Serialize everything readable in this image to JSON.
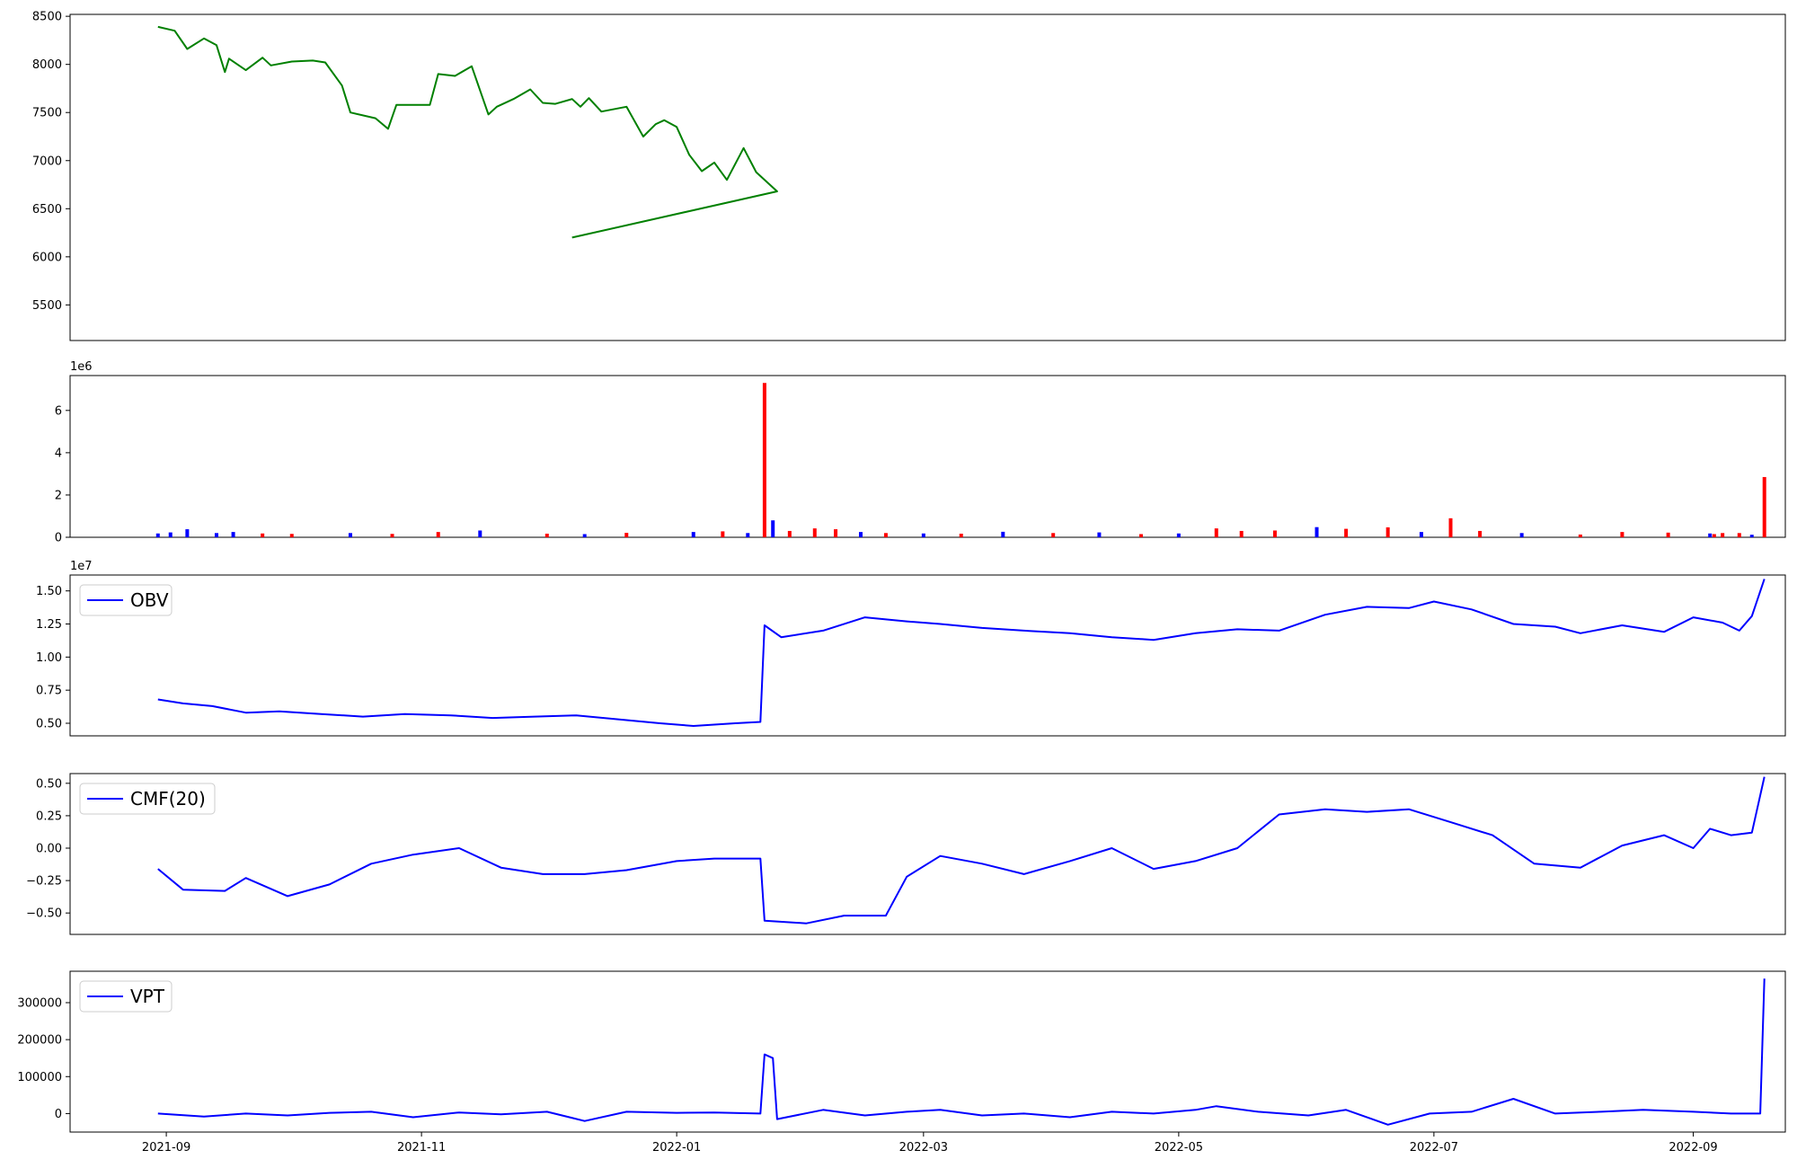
{
  "chart_data": {
    "type": "line",
    "x_axis": {
      "ticks": [
        "2021-09",
        "2021-11",
        "2022-01",
        "2022-03",
        "2022-05",
        "2022-07",
        "2022-09"
      ],
      "range": [
        "2021-08-09",
        "2022-09-23"
      ]
    },
    "panels": [
      {
        "id": "price",
        "type": "line",
        "color": "#008000",
        "ylim": [
          5130,
          8520
        ],
        "yticks": [
          5500,
          6000,
          6500,
          7000,
          7500,
          8000,
          8500
        ],
        "ytick_labels": [
          "5500",
          "6000",
          "6500",
          "7000",
          "7500",
          "8000",
          "8500"
        ],
        "legend": "",
        "points": [
          [
            "2021-08-30",
            8390
          ],
          [
            "2021-09-03",
            8350
          ],
          [
            "2021-09-06",
            8160
          ],
          [
            "2021-09-10",
            8270
          ],
          [
            "2021-09-13",
            8200
          ],
          [
            "2021-09-15",
            7920
          ],
          [
            "2021-09-16",
            8060
          ],
          [
            "2021-09-20",
            7940
          ],
          [
            "2021-09-24",
            8070
          ],
          [
            "2021-09-26",
            7990
          ],
          [
            "2021-10-01",
            8030
          ],
          [
            "2021-10-06",
            8040
          ],
          [
            "2021-10-09",
            8020
          ],
          [
            "2021-10-13",
            7780
          ],
          [
            "2021-10-15",
            7500
          ],
          [
            "2021-10-21",
            7440
          ],
          [
            "2021-10-24",
            7330
          ],
          [
            "2021-10-26",
            7580
          ],
          [
            "2021-11-03",
            7580
          ],
          [
            "2021-11-05",
            7900
          ],
          [
            "2021-11-09",
            7880
          ],
          [
            "2021-11-13",
            7980
          ],
          [
            "2021-11-17",
            7480
          ],
          [
            "2021-11-19",
            7560
          ],
          [
            "2021-11-23",
            7640
          ],
          [
            "2021-11-27",
            7740
          ],
          [
            "2021-11-30",
            7600
          ],
          [
            "2021-12-03",
            7590
          ],
          [
            "2021-12-07",
            7640
          ],
          [
            "2021-12-09",
            7560
          ],
          [
            "2021-12-11",
            7650
          ],
          [
            "2021-12-14",
            7510
          ],
          [
            "2021-12-20",
            7560
          ],
          [
            "2021-12-24",
            7250
          ],
          [
            "2021-12-27",
            7380
          ],
          [
            "2021-12-29",
            7420
          ],
          [
            "2022-01-01",
            7350
          ],
          [
            "2022-01-04",
            7060
          ],
          [
            "2022-01-07",
            6890
          ],
          [
            "2022-01-10",
            6980
          ],
          [
            "2022-01-13",
            6800
          ],
          [
            "2022-01-17",
            7130
          ],
          [
            "2022-01-20",
            6880
          ],
          [
            "2022-01-25",
            6680
          ],
          [
            "2021-12-07",
            6200
          ]
        ]
      },
      {
        "id": "volume",
        "type": "bar",
        "ylim": [
          0,
          7650000
        ],
        "yticks": [
          0,
          2000000,
          4000000,
          6000000
        ],
        "ytick_labels": [
          "0",
          "2",
          "4",
          "6"
        ],
        "scale_label": "1e6",
        "legend": "",
        "colors": {
          "up": "#ff0000",
          "down": "#0000ff",
          "flat": "#000000"
        },
        "bars": [
          [
            "2021-08-30",
            180000,
            "down"
          ],
          [
            "2021-09-02",
            230000,
            "down"
          ],
          [
            "2021-09-06",
            380000,
            "down"
          ],
          [
            "2021-09-13",
            200000,
            "down"
          ],
          [
            "2021-09-17",
            250000,
            "down"
          ],
          [
            "2021-09-24",
            180000,
            "red"
          ],
          [
            "2021-10-01",
            160000,
            "red"
          ],
          [
            "2021-10-15",
            200000,
            "down"
          ],
          [
            "2021-10-25",
            160000,
            "red"
          ],
          [
            "2021-11-05",
            250000,
            "red"
          ],
          [
            "2021-11-15",
            320000,
            "down"
          ],
          [
            "2021-12-01",
            170000,
            "red"
          ],
          [
            "2021-12-10",
            150000,
            "down"
          ],
          [
            "2021-12-20",
            210000,
            "red"
          ],
          [
            "2022-01-05",
            250000,
            "down"
          ],
          [
            "2022-01-12",
            280000,
            "red"
          ],
          [
            "2022-01-18",
            200000,
            "down"
          ],
          [
            "2022-01-22",
            7300000,
            "up"
          ],
          [
            "2022-01-24",
            800000,
            "down"
          ],
          [
            "2022-01-28",
            300000,
            "red"
          ],
          [
            "2022-02-03",
            420000,
            "up"
          ],
          [
            "2022-02-08",
            380000,
            "up"
          ],
          [
            "2022-02-14",
            250000,
            "down"
          ],
          [
            "2022-02-20",
            200000,
            "red"
          ],
          [
            "2022-03-01",
            180000,
            "down"
          ],
          [
            "2022-03-10",
            170000,
            "red"
          ],
          [
            "2022-03-20",
            260000,
            "down"
          ],
          [
            "2022-04-01",
            200000,
            "red"
          ],
          [
            "2022-04-12",
            230000,
            "down"
          ],
          [
            "2022-04-22",
            150000,
            "red"
          ],
          [
            "2022-05-01",
            180000,
            "down"
          ],
          [
            "2022-05-10",
            420000,
            "up"
          ],
          [
            "2022-05-16",
            300000,
            "up"
          ],
          [
            "2022-05-24",
            320000,
            "up"
          ],
          [
            "2022-06-03",
            480000,
            "down"
          ],
          [
            "2022-06-10",
            400000,
            "up"
          ],
          [
            "2022-06-20",
            470000,
            "up"
          ],
          [
            "2022-06-28",
            250000,
            "down"
          ],
          [
            "2022-07-05",
            900000,
            "up"
          ],
          [
            "2022-07-12",
            300000,
            "up"
          ],
          [
            "2022-07-22",
            200000,
            "down"
          ],
          [
            "2022-08-05",
            130000,
            "red"
          ],
          [
            "2022-08-15",
            250000,
            "up"
          ],
          [
            "2022-08-26",
            220000,
            "up"
          ],
          [
            "2022-09-05",
            180000,
            "down"
          ],
          [
            "2022-09-06",
            150000,
            "up"
          ],
          [
            "2022-09-08",
            200000,
            "up"
          ],
          [
            "2022-09-12",
            200000,
            "up"
          ],
          [
            "2022-09-15",
            120000,
            "down"
          ],
          [
            "2022-09-18",
            2850000,
            "up"
          ]
        ]
      },
      {
        "id": "obv",
        "type": "line",
        "color": "#0000ff",
        "ylim": [
          4050000,
          16200000
        ],
        "yticks": [
          5000000,
          7500000,
          10000000,
          12500000,
          15000000
        ],
        "ytick_labels": [
          "0.50",
          "0.75",
          "1.00",
          "1.25",
          "1.50"
        ],
        "scale_label": "1e7",
        "legend": "OBV",
        "points": [
          [
            "2021-08-30",
            6800000
          ],
          [
            "2021-09-05",
            6500000
          ],
          [
            "2021-09-12",
            6300000
          ],
          [
            "2021-09-20",
            5800000
          ],
          [
            "2021-09-28",
            5900000
          ],
          [
            "2021-10-08",
            5700000
          ],
          [
            "2021-10-18",
            5500000
          ],
          [
            "2021-10-28",
            5700000
          ],
          [
            "2021-11-08",
            5600000
          ],
          [
            "2021-11-18",
            5400000
          ],
          [
            "2021-11-28",
            5500000
          ],
          [
            "2021-12-08",
            5600000
          ],
          [
            "2021-12-18",
            5300000
          ],
          [
            "2021-12-28",
            5000000
          ],
          [
            "2022-01-05",
            4800000
          ],
          [
            "2022-01-15",
            5000000
          ],
          [
            "2022-01-21",
            5100000
          ],
          [
            "2022-01-22",
            12400000
          ],
          [
            "2022-01-26",
            11500000
          ],
          [
            "2022-02-05",
            12000000
          ],
          [
            "2022-02-15",
            13000000
          ],
          [
            "2022-02-25",
            12700000
          ],
          [
            "2022-03-05",
            12500000
          ],
          [
            "2022-03-15",
            12200000
          ],
          [
            "2022-03-25",
            12000000
          ],
          [
            "2022-04-05",
            11800000
          ],
          [
            "2022-04-15",
            11500000
          ],
          [
            "2022-04-25",
            11300000
          ],
          [
            "2022-05-05",
            11800000
          ],
          [
            "2022-05-15",
            12100000
          ],
          [
            "2022-05-25",
            12000000
          ],
          [
            "2022-06-05",
            13200000
          ],
          [
            "2022-06-15",
            13800000
          ],
          [
            "2022-06-25",
            13700000
          ],
          [
            "2022-07-01",
            14200000
          ],
          [
            "2022-07-10",
            13600000
          ],
          [
            "2022-07-20",
            12500000
          ],
          [
            "2022-07-30",
            12300000
          ],
          [
            "2022-08-05",
            11800000
          ],
          [
            "2022-08-15",
            12400000
          ],
          [
            "2022-08-25",
            11900000
          ],
          [
            "2022-09-01",
            13000000
          ],
          [
            "2022-09-08",
            12600000
          ],
          [
            "2022-09-12",
            12000000
          ],
          [
            "2022-09-15",
            13100000
          ],
          [
            "2022-09-18",
            15900000
          ]
        ]
      },
      {
        "id": "cmf",
        "type": "line",
        "color": "#0000ff",
        "ylim": [
          -0.665,
          0.575
        ],
        "yticks": [
          -0.5,
          -0.25,
          0.0,
          0.25,
          0.5
        ],
        "ytick_labels": [
          "−0.50",
          "−0.25",
          "0.00",
          "0.25",
          "0.50"
        ],
        "legend": "CMF(20)",
        "points": [
          [
            "2021-08-30",
            -0.16
          ],
          [
            "2021-09-05",
            -0.32
          ],
          [
            "2021-09-15",
            -0.33
          ],
          [
            "2021-09-20",
            -0.23
          ],
          [
            "2021-09-30",
            -0.37
          ],
          [
            "2021-10-10",
            -0.28
          ],
          [
            "2021-10-20",
            -0.12
          ],
          [
            "2021-10-30",
            -0.05
          ],
          [
            "2021-11-10",
            0.0
          ],
          [
            "2021-11-20",
            -0.15
          ],
          [
            "2021-11-30",
            -0.2
          ],
          [
            "2021-12-10",
            -0.2
          ],
          [
            "2021-12-20",
            -0.17
          ],
          [
            "2022-01-01",
            -0.1
          ],
          [
            "2022-01-10",
            -0.08
          ],
          [
            "2022-01-21",
            -0.08
          ],
          [
            "2022-01-22",
            -0.56
          ],
          [
            "2022-02-01",
            -0.58
          ],
          [
            "2022-02-10",
            -0.52
          ],
          [
            "2022-02-20",
            -0.52
          ],
          [
            "2022-02-25",
            -0.22
          ],
          [
            "2022-03-05",
            -0.06
          ],
          [
            "2022-03-15",
            -0.12
          ],
          [
            "2022-03-25",
            -0.2
          ],
          [
            "2022-04-05",
            -0.1
          ],
          [
            "2022-04-15",
            0.0
          ],
          [
            "2022-04-25",
            -0.16
          ],
          [
            "2022-05-05",
            -0.1
          ],
          [
            "2022-05-15",
            0.0
          ],
          [
            "2022-05-25",
            0.26
          ],
          [
            "2022-06-05",
            0.3
          ],
          [
            "2022-06-15",
            0.28
          ],
          [
            "2022-06-25",
            0.3
          ],
          [
            "2022-07-05",
            0.2
          ],
          [
            "2022-07-15",
            0.1
          ],
          [
            "2022-07-25",
            -0.12
          ],
          [
            "2022-08-05",
            -0.15
          ],
          [
            "2022-08-15",
            0.02
          ],
          [
            "2022-08-25",
            0.1
          ],
          [
            "2022-09-01",
            0.0
          ],
          [
            "2022-09-05",
            0.15
          ],
          [
            "2022-09-10",
            0.1
          ],
          [
            "2022-09-15",
            0.12
          ],
          [
            "2022-09-18",
            0.55
          ]
        ]
      },
      {
        "id": "vpt",
        "type": "line",
        "color": "#0000ff",
        "ylim": [
          -50000,
          385000
        ],
        "yticks": [
          0,
          100000,
          200000,
          300000
        ],
        "ytick_labels": [
          "0",
          "100000",
          "200000",
          "300000"
        ],
        "legend": "VPT",
        "points": [
          [
            "2021-08-30",
            0
          ],
          [
            "2021-09-10",
            -8000
          ],
          [
            "2021-09-20",
            0
          ],
          [
            "2021-09-30",
            -5000
          ],
          [
            "2021-10-10",
            2000
          ],
          [
            "2021-10-20",
            5000
          ],
          [
            "2021-10-30",
            -10000
          ],
          [
            "2021-11-10",
            3000
          ],
          [
            "2021-11-20",
            -2000
          ],
          [
            "2021-12-01",
            5000
          ],
          [
            "2021-12-10",
            -20000
          ],
          [
            "2021-12-20",
            5000
          ],
          [
            "2022-01-01",
            2000
          ],
          [
            "2022-01-10",
            3000
          ],
          [
            "2022-01-21",
            0
          ],
          [
            "2022-01-22",
            160000
          ],
          [
            "2022-01-24",
            150000
          ],
          [
            "2022-01-25",
            -15000
          ],
          [
            "2022-02-05",
            10000
          ],
          [
            "2022-02-15",
            -5000
          ],
          [
            "2022-02-25",
            5000
          ],
          [
            "2022-03-05",
            10000
          ],
          [
            "2022-03-15",
            -5000
          ],
          [
            "2022-03-25",
            0
          ],
          [
            "2022-04-05",
            -10000
          ],
          [
            "2022-04-15",
            5000
          ],
          [
            "2022-04-25",
            0
          ],
          [
            "2022-05-05",
            10000
          ],
          [
            "2022-05-10",
            20000
          ],
          [
            "2022-05-20",
            5000
          ],
          [
            "2022-06-01",
            -5000
          ],
          [
            "2022-06-10",
            10000
          ],
          [
            "2022-06-20",
            -30000
          ],
          [
            "2022-06-30",
            0
          ],
          [
            "2022-07-10",
            5000
          ],
          [
            "2022-07-20",
            40000
          ],
          [
            "2022-07-30",
            0
          ],
          [
            "2022-08-10",
            5000
          ],
          [
            "2022-08-20",
            10000
          ],
          [
            "2022-09-01",
            5000
          ],
          [
            "2022-09-10",
            0
          ],
          [
            "2022-09-17",
            0
          ],
          [
            "2022-09-18",
            365000
          ]
        ]
      }
    ]
  }
}
